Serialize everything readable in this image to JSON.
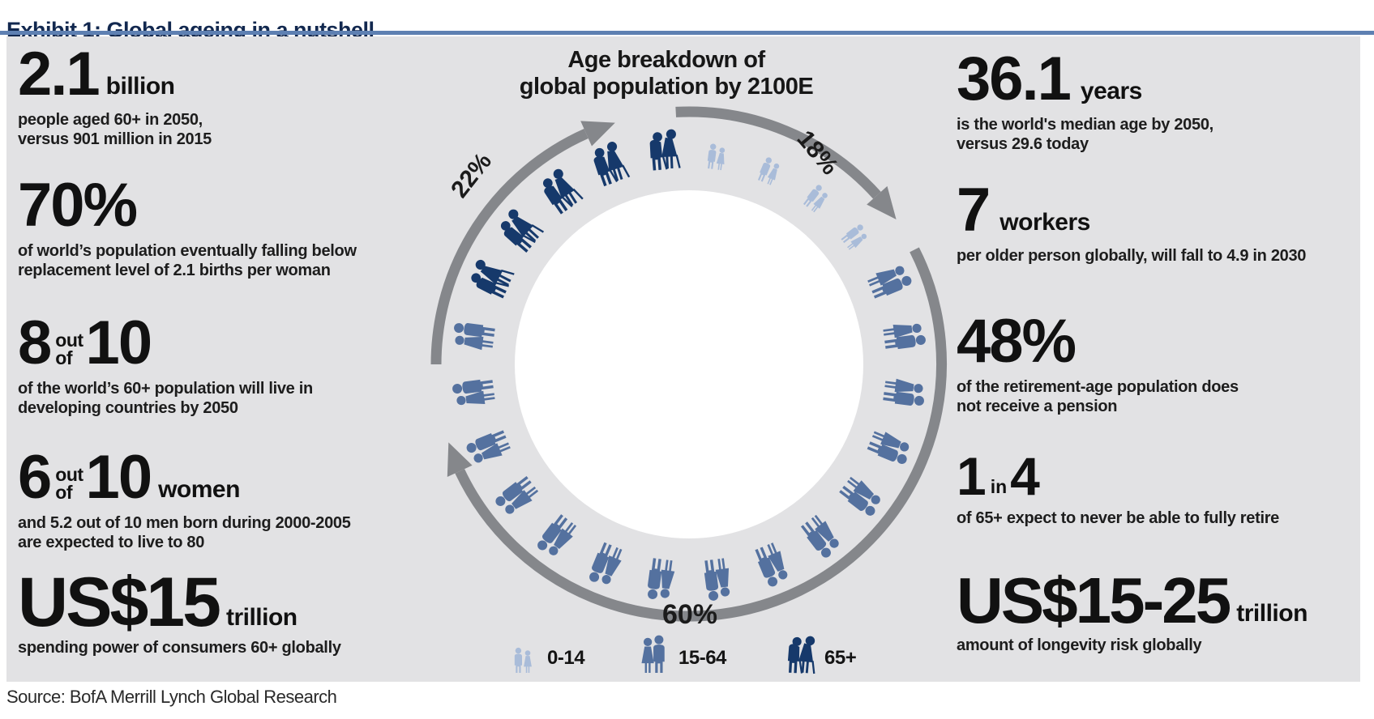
{
  "exhibit": {
    "title": "Exhibit 1: Global ageing in a nutshell"
  },
  "source": "Source: BofA Merrill Lynch Global Research",
  "center": {
    "title_line1": "Age breakdown of",
    "title_line2": "global population by 2100E",
    "pct_seniors": "22%",
    "pct_children": "18%",
    "pct_adults": "60%"
  },
  "left_stats": [
    {
      "big": "2.1",
      "unit": "billion",
      "sub": "people aged 60+ in 2050,\nversus 901 million in 2015"
    },
    {
      "big": "70%",
      "sub": "of world’s population eventually falling below\nreplacement level of 2.1 births per woman"
    },
    {
      "big": "8",
      "mid1": "out",
      "mid2": "of",
      "big2": "10",
      "sub": "of the world’s 60+ population will live in\ndeveloping countries by 2050"
    },
    {
      "big": "6",
      "mid1": "out",
      "mid2": "of",
      "big2": "10",
      "unit": "women",
      "sub": "and 5.2 out of 10 men born during 2000-2005\nare expected to live to 80"
    },
    {
      "big": "US$15",
      "unit": "trillion",
      "sub": "spending power of consumers 60+ globally"
    }
  ],
  "right_stats": [
    {
      "big": "36.1",
      "unit": "years",
      "sub": "is the world's median age by 2050,\nversus 29.6 today"
    },
    {
      "big": "7",
      "unit": "workers",
      "sub": "per older person globally, will fall to 4.9 in 2030"
    },
    {
      "big": "48%",
      "sub": "of the retirement-age population does\nnot receive a pension"
    },
    {
      "big": "1",
      "mid1": "in",
      "big2": "4",
      "sub": "of 65+ expect to never be able to fully retire"
    },
    {
      "big": "US$15-25",
      "unit": "trillion",
      "sub": "amount of longevity risk globally"
    }
  ],
  "legend": [
    {
      "label": "0-14"
    },
    {
      "label": "15-64"
    },
    {
      "label": "65+"
    }
  ],
  "icons": {
    "person-child": "child-pair-pictogram",
    "person-adult": "adult-pair-pictogram",
    "person-senior": "senior-pair-with-cane-pictogram",
    "globe": "world-globe-europe-africa-view",
    "arrows": "clockwise-circular-arrows"
  },
  "colors": {
    "panel_bg": "#e2e2e4",
    "rule_blue": "#5e80b2",
    "title_navy": "#12284f",
    "arrow_gray": "#85878b"
  },
  "chart_data": {
    "type": "pie",
    "title": "Age breakdown of global population by 2100E",
    "categories": [
      "0-14",
      "15-64",
      "65+"
    ],
    "values": [
      18,
      60,
      22
    ],
    "unit": "%",
    "colors": {
      "0-14": "#a9bcd9",
      "15-64": "#54719f",
      "65+": "#16396b"
    },
    "legend_position": "bottom",
    "annotations": [
      "18%",
      "60%",
      "22%"
    ],
    "direction": "clockwise",
    "arrow_color": "#85878b"
  }
}
